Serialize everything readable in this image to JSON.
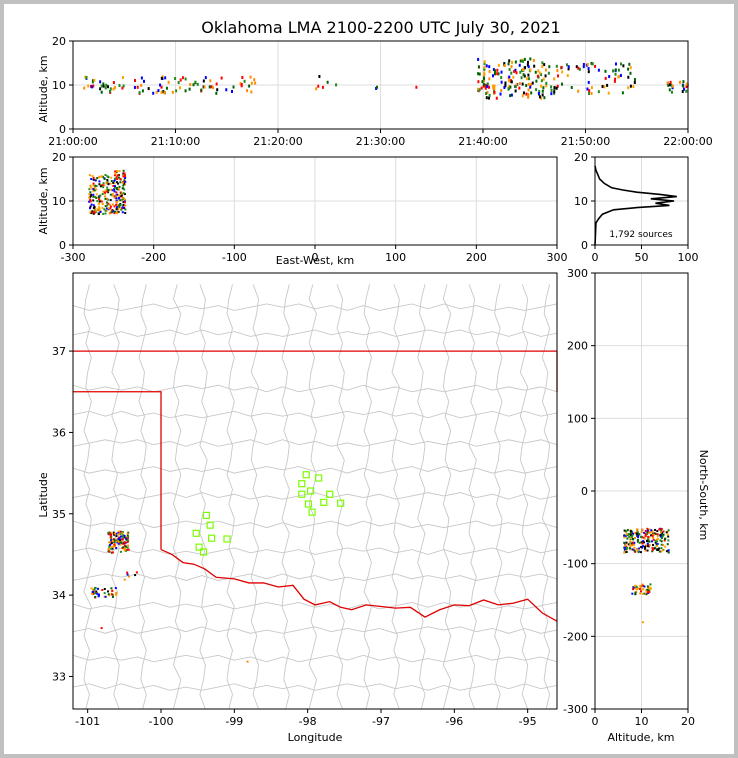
{
  "colors": {
    "frame_border": "#c0c0c0",
    "grid": "#dddddd",
    "county_lines": "#c8c8c8",
    "state_border": "#e00000",
    "station_marker": "#7cfc00",
    "density_line": "#000000",
    "source_palette": [
      "#006400",
      "#228b22",
      "#ff8c00",
      "#ff0000",
      "#0000ff",
      "#000000",
      "#ffa500"
    ]
  },
  "chart_data": [
    {
      "panel": "time-altitude",
      "type": "scatter",
      "title": "Oklahoma LMA 2100-2200 UTC July 30, 2021",
      "xlabel": "",
      "ylabel": "Altitude, km",
      "xlim": [
        "21:00:00",
        "22:00:00"
      ],
      "ylim": [
        0,
        20
      ],
      "xticks": [
        "21:00:00",
        "21:10:00",
        "21:20:00",
        "21:30:00",
        "21:40:00",
        "21:50:00",
        "22:00:00"
      ],
      "yticks": [
        "0",
        "10",
        "20"
      ],
      "grid": true,
      "clusters": [
        {
          "t_min": [
            1,
            5
          ],
          "alt_km": [
            8,
            12
          ],
          "count": 30
        },
        {
          "t_min": [
            6,
            12
          ],
          "alt_km": [
            8,
            12
          ],
          "count": 40
        },
        {
          "t_min": [
            12,
            18
          ],
          "alt_km": [
            8,
            12
          ],
          "count": 30
        },
        {
          "t_min": [
            23,
            26
          ],
          "alt_km": [
            9,
            12
          ],
          "count": 6
        },
        {
          "t_min": [
            29,
            30
          ],
          "alt_km": [
            9,
            10
          ],
          "count": 2
        },
        {
          "t_min": [
            33.5,
            34
          ],
          "alt_km": [
            9,
            10
          ],
          "count": 1
        },
        {
          "t_min": [
            39.5,
            46
          ],
          "alt_km": [
            7,
            16
          ],
          "count": 160
        },
        {
          "t_min": [
            46,
            55
          ],
          "alt_km": [
            8,
            15
          ],
          "count": 80
        },
        {
          "t_min": [
            58,
            60
          ],
          "alt_km": [
            8,
            11
          ],
          "count": 20
        }
      ]
    },
    {
      "panel": "ew-altitude",
      "type": "scatter",
      "xlabel": "East-West, km",
      "ylabel": "Altitude, km",
      "xlim": [
        -300,
        300
      ],
      "ylim": [
        0,
        20
      ],
      "xticks": [
        "-300",
        "-200",
        "-100",
        "0",
        "100",
        "200",
        "300"
      ],
      "yticks": [
        "0",
        "10",
        "20"
      ],
      "grid": true,
      "clusters": [
        {
          "x_km": [
            -280,
            -235
          ],
          "alt_km": [
            7,
            16
          ],
          "count": 220
        },
        {
          "x_km": [
            -248,
            -235
          ],
          "alt_km": [
            8,
            17
          ],
          "count": 60
        }
      ]
    },
    {
      "panel": "altitude-histogram",
      "type": "line",
      "xlim": [
        0,
        100
      ],
      "ylim": [
        0,
        20
      ],
      "xticks": [
        "0",
        "50",
        "100"
      ],
      "yticks": [
        "0",
        "10",
        "20"
      ],
      "annotation": "1,792 sources",
      "profile": [
        {
          "alt": 0,
          "n": 0
        },
        {
          "alt": 5,
          "n": 1
        },
        {
          "alt": 6,
          "n": 4
        },
        {
          "alt": 7,
          "n": 8
        },
        {
          "alt": 8,
          "n": 20
        },
        {
          "alt": 8.5,
          "n": 45
        },
        {
          "alt": 9,
          "n": 80
        },
        {
          "alt": 9.5,
          "n": 65
        },
        {
          "alt": 10,
          "n": 85
        },
        {
          "alt": 10.5,
          "n": 60
        },
        {
          "alt": 11,
          "n": 88
        },
        {
          "alt": 11.5,
          "n": 70
        },
        {
          "alt": 12,
          "n": 45
        },
        {
          "alt": 12.5,
          "n": 30
        },
        {
          "alt": 13,
          "n": 18
        },
        {
          "alt": 14,
          "n": 10
        },
        {
          "alt": 15,
          "n": 5
        },
        {
          "alt": 16,
          "n": 3
        },
        {
          "alt": 17,
          "n": 1
        },
        {
          "alt": 18,
          "n": 0
        }
      ]
    },
    {
      "panel": "plan-view",
      "type": "scatter",
      "xlabel": "Longitude",
      "ylabel": "Latitude",
      "xlim": [
        -101.2,
        -94.6
      ],
      "ylim": [
        32.6,
        37.96
      ],
      "xticks": [
        "-101",
        "-100",
        "-99",
        "-98",
        "-97",
        "-96",
        "-95"
      ],
      "yticks": [
        "33",
        "34",
        "35",
        "36",
        "37"
      ],
      "stations": [
        [
          -98.02,
          35.48
        ],
        [
          -97.85,
          35.44
        ],
        [
          -98.08,
          35.37
        ],
        [
          -97.96,
          35.28
        ],
        [
          -98.08,
          35.24
        ],
        [
          -97.7,
          35.24
        ],
        [
          -97.99,
          35.12
        ],
        [
          -97.78,
          35.14
        ],
        [
          -97.55,
          35.13
        ],
        [
          -97.94,
          35.02
        ],
        [
          -99.38,
          34.98
        ],
        [
          -99.33,
          34.86
        ],
        [
          -99.52,
          34.76
        ],
        [
          -99.31,
          34.7
        ],
        [
          -99.1,
          34.69
        ],
        [
          -99.48,
          34.59
        ],
        [
          -99.42,
          34.53
        ]
      ],
      "clusters": [
        {
          "lon": [
            -100.72,
            -100.44
          ],
          "lat": [
            34.52,
            34.78
          ],
          "count": 120
        },
        {
          "lon": [
            -100.95,
            -100.6
          ],
          "lat": [
            33.97,
            34.1
          ],
          "count": 40
        },
        {
          "lon": [
            -100.5,
            -100.3
          ],
          "lat": [
            34.1,
            34.3
          ],
          "count": 6
        },
        {
          "lon": [
            -100.85,
            -100.8
          ],
          "lat": [
            33.58,
            33.62
          ],
          "count": 1
        },
        {
          "lon": [
            -98.82,
            -98.78
          ],
          "lat": [
            33.16,
            33.2
          ],
          "count": 1
        }
      ]
    },
    {
      "panel": "altitude-ns",
      "type": "scatter",
      "xlabel": "Altitude, km",
      "ylabel": "North-South, km",
      "xlim": [
        0,
        20
      ],
      "ylim": [
        -300,
        300
      ],
      "xticks": [
        "0",
        "10",
        "20"
      ],
      "yticks": [
        "-300",
        "-200",
        "-100",
        "0",
        "100",
        "200",
        "300"
      ],
      "clusters": [
        {
          "alt_km": [
            6,
            16
          ],
          "ns_km": [
            -85,
            -52
          ],
          "count": 220
        },
        {
          "alt_km": [
            8,
            12
          ],
          "ns_km": [
            -142,
            -128
          ],
          "count": 50
        },
        {
          "alt_km": [
            10,
            10.5
          ],
          "ns_km": [
            -182,
            -180
          ],
          "count": 1
        }
      ]
    }
  ]
}
